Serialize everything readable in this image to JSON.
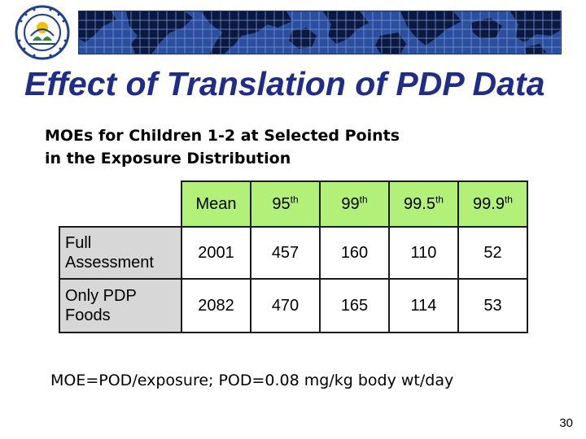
{
  "header": {
    "logo": {
      "type": "agency-seal",
      "ring_text": "UNITED STATES ENVIRONMENTAL PROTECTION AGENCY",
      "colors": {
        "ring": "#1f3f8f",
        "leaf": "#2e8b3a",
        "sun": "#f2c200"
      }
    },
    "banner": {
      "type": "world-map-grid",
      "colors": {
        "sea": "#2b4f9e",
        "land": "#0b1840",
        "grid": "#7f9ad6"
      }
    }
  },
  "slide": {
    "title": "Effect of Translation of PDP Data",
    "subtitle_line1": "MOEs for Children 1-2 at Selected Points",
    "subtitle_line2": "in the Exposure Distribution"
  },
  "table": {
    "columns": [
      {
        "base": "Mean",
        "sup": ""
      },
      {
        "base": "95",
        "sup": "th"
      },
      {
        "base": "99",
        "sup": "th"
      },
      {
        "base": "99.5",
        "sup": "th"
      },
      {
        "base": "99.9",
        "sup": "th"
      }
    ],
    "rows": [
      {
        "label_line1": "Full",
        "label_line2": "Assessment",
        "values": [
          "2001",
          "457",
          "160",
          "110",
          "52"
        ]
      },
      {
        "label_line1": "Only PDP",
        "label_line2": "Foods",
        "values": [
          "2082",
          "470",
          "165",
          "114",
          "53"
        ]
      }
    ],
    "colors": {
      "header_fill": "#b3f07a",
      "label_fill": "#d7d7d7"
    }
  },
  "footnote": "MOE=POD/exposure; POD=0.08 mg/kg body wt/day",
  "page_number": "30"
}
